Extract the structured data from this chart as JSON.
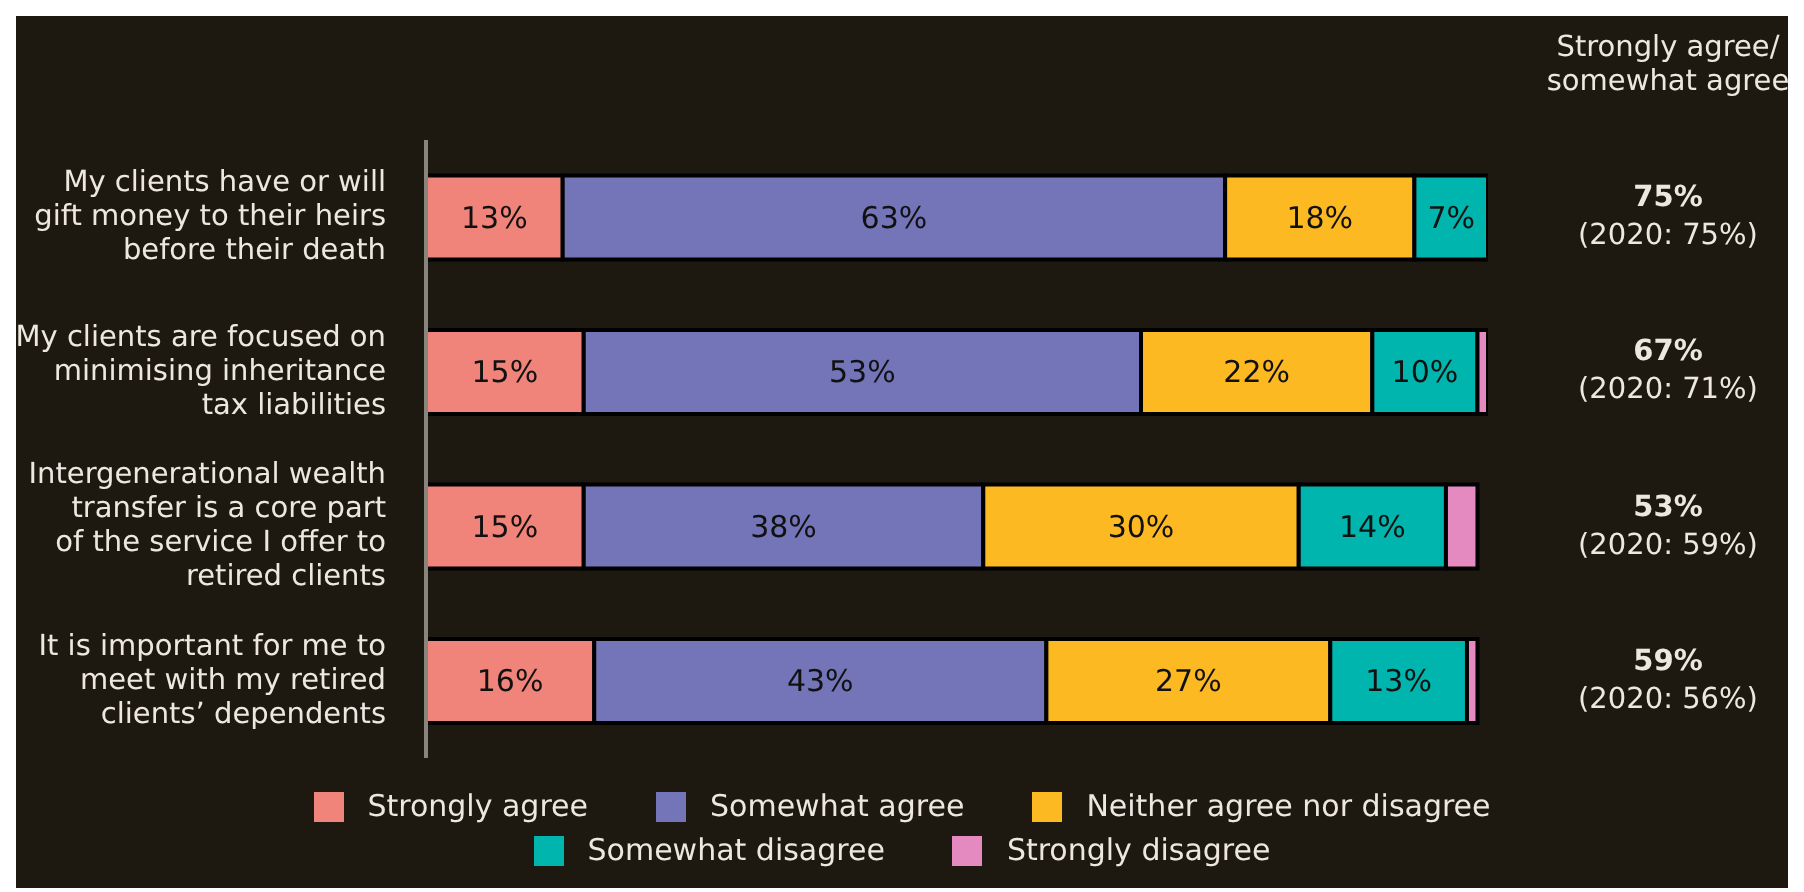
{
  "chart_data": {
    "type": "bar",
    "orientation": "horizontal",
    "stacked": true,
    "categories": [
      "My clients have or will gift money to their heirs before their death",
      "My clients are focused on minimising inheritance tax liabilities",
      "Intergenerational wealth transfer is a core part of the service I offer to retired clients",
      "It is important for me to meet with my retired clients’ dependents"
    ],
    "series": [
      {
        "name": "Strongly agree",
        "color": "#f0837a",
        "values": [
          13,
          15,
          15,
          16
        ],
        "value_labels": [
          "13%",
          "15%",
          "15%",
          "16%"
        ]
      },
      {
        "name": "Somewhat agree",
        "color": "#7475b9",
        "values": [
          63,
          53,
          38,
          43
        ],
        "value_labels": [
          "63%",
          "53%",
          "38%",
          "43%"
        ]
      },
      {
        "name": "Neither agree nor disagree",
        "color": "#fdb921",
        "values": [
          18,
          22,
          30,
          27
        ],
        "value_labels": [
          "18%",
          "22%",
          "30%",
          "27%"
        ]
      },
      {
        "name": "Somewhat disagree",
        "color": "#00b5ad",
        "values": [
          7,
          10,
          14,
          13
        ],
        "value_labels": [
          "7%",
          "10%",
          "14%",
          "13%"
        ]
      },
      {
        "name": "Strongly disagree",
        "color": "#e58ac0",
        "values": [
          0,
          1,
          3,
          1
        ],
        "value_labels": [
          null,
          null,
          null,
          null
        ]
      }
    ],
    "tick_labels": "y",
    "legend": "bottom",
    "annotations": [
      "Strongly agree/ somewhat agree",
      "75% (2020: 75%)",
      "67% (2020: 71%)",
      "53% (2020: 59%)",
      "59% (2020: 56%)"
    ]
  }
}
